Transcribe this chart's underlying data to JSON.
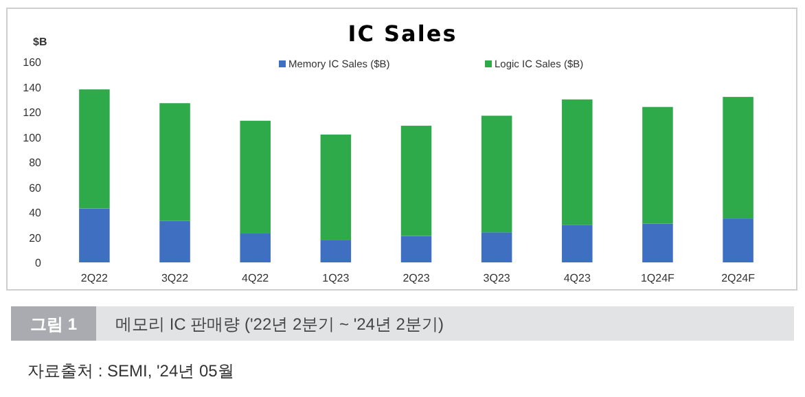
{
  "chart_data": {
    "type": "bar",
    "title": "IC Sales",
    "ylabel": "$B",
    "stacked": true,
    "legend": "top",
    "grid": false,
    "categories": [
      "2Q22",
      "3Q22",
      "4Q22",
      "1Q23",
      "2Q23",
      "3Q23",
      "4Q23",
      "1Q24F",
      "2Q24F"
    ],
    "series": [
      {
        "name": "Memory IC Sales ($B)",
        "color": "#3f6fc0",
        "values": [
          43,
          33,
          23,
          18,
          21,
          24,
          30,
          31,
          35
        ]
      },
      {
        "name": "Logic IC Sales ($B)",
        "color": "#2eaa4a",
        "values": [
          95,
          94,
          90,
          84,
          88,
          93,
          100,
          93,
          97
        ]
      }
    ],
    "ylim": [
      0,
      160
    ],
    "yticks": [
      0,
      20,
      40,
      60,
      80,
      100,
      120,
      140,
      160
    ],
    "annotations": [
      "그림 1",
      "메모리 IC 판매량 ('22년 2분기 ~ '24년 2분기)",
      "자료출처 : SEMI, '24년 05월"
    ]
  }
}
